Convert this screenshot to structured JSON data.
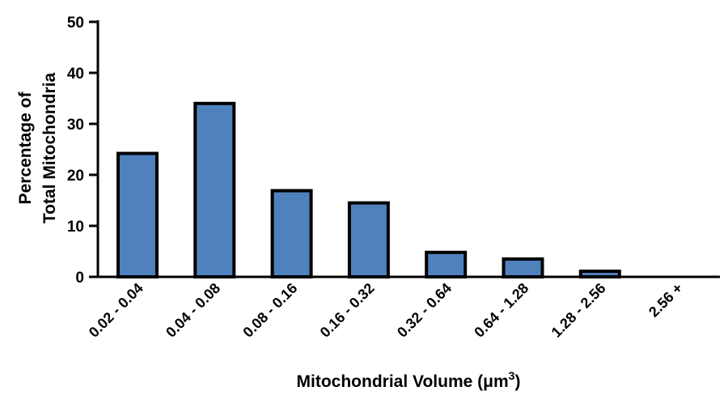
{
  "chart_data": {
    "type": "bar",
    "title": "",
    "categories": [
      "0.02 - 0.04",
      "0.04 - 0.08",
      "0.08 - 0.16",
      "0.16 - 0.32",
      "0.32 - 0.64",
      "0.64 - 1.28",
      "1.28 - 2.56",
      "2.56 +"
    ],
    "values": [
      24.2,
      34.0,
      16.9,
      14.5,
      4.8,
      3.5,
      1.1,
      0
    ],
    "xlabel": "Mitochondrial Volume (μm",
    "xlabel_sup": "3",
    "xlabel_end": ")",
    "ylabel_lines": [
      "Percentage of",
      "Total Mitochondria"
    ],
    "ylim": [
      0,
      50
    ],
    "yticks": [
      "0",
      "10",
      "20",
      "30",
      "40",
      "50"
    ],
    "grid": false,
    "bar_color": "#4f81bd"
  }
}
